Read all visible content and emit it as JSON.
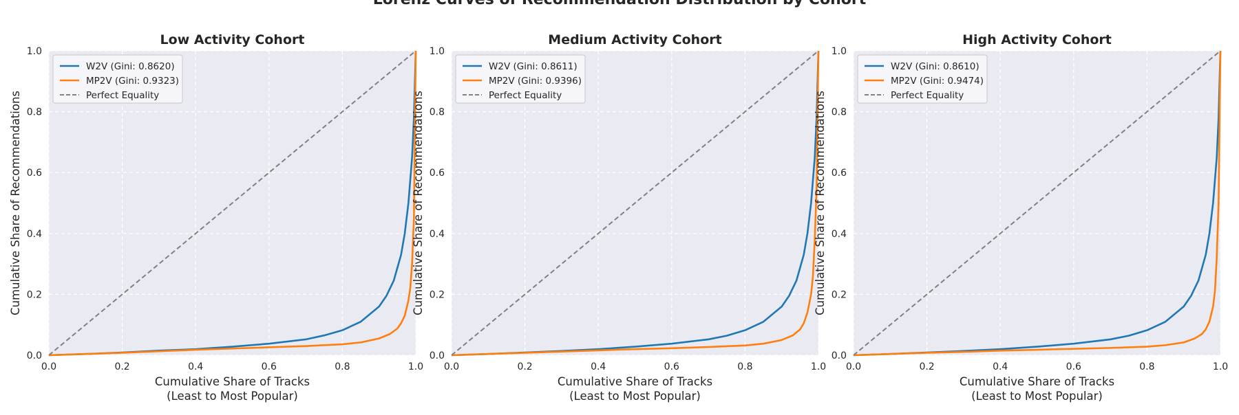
{
  "suptitle": "Lorenz Curves of Recommendation Distribution by Cohort",
  "chart_data": [
    {
      "type": "line",
      "title": "Low Activity Cohort",
      "xlabel": "Cumulative Share of Tracks\n(Least to Most Popular)",
      "ylabel": "Cumulative Share of Recommendations",
      "xlim": [
        0,
        1
      ],
      "ylim": [
        0,
        1
      ],
      "xticks": [
        "0.0",
        "0.2",
        "0.4",
        "0.6",
        "0.8",
        "1.0"
      ],
      "yticks": [
        "0.0",
        "0.2",
        "0.4",
        "0.6",
        "0.8",
        "1.0"
      ],
      "grid": true,
      "legend_position": "top-left",
      "series": [
        {
          "name": "W2V (Gini: 0.8620)",
          "color": "#1f77b4",
          "style": "solid",
          "x": [
            0,
            0.1,
            0.2,
            0.3,
            0.4,
            0.5,
            0.6,
            0.7,
            0.75,
            0.8,
            0.85,
            0.9,
            0.92,
            0.94,
            0.96,
            0.97,
            0.98,
            0.99,
            0.995,
            1.0
          ],
          "y": [
            0,
            0.004,
            0.009,
            0.015,
            0.02,
            0.028,
            0.038,
            0.052,
            0.065,
            0.082,
            0.11,
            0.16,
            0.195,
            0.245,
            0.33,
            0.4,
            0.5,
            0.65,
            0.78,
            1.0
          ]
        },
        {
          "name": "MP2V (Gini: 0.9323)",
          "color": "#ff7f0e",
          "style": "solid",
          "x": [
            0,
            0.1,
            0.2,
            0.3,
            0.4,
            0.5,
            0.6,
            0.7,
            0.8,
            0.85,
            0.9,
            0.93,
            0.95,
            0.96,
            0.97,
            0.98,
            0.985,
            0.99,
            0.995,
            1.0
          ],
          "y": [
            0,
            0.004,
            0.008,
            0.013,
            0.018,
            0.022,
            0.026,
            0.03,
            0.036,
            0.042,
            0.055,
            0.07,
            0.088,
            0.105,
            0.13,
            0.18,
            0.22,
            0.3,
            0.45,
            1.0
          ]
        },
        {
          "name": "Perfect Equality",
          "color": "#808080",
          "style": "dashed",
          "x": [
            0,
            1
          ],
          "y": [
            0,
            1
          ]
        }
      ]
    },
    {
      "type": "line",
      "title": "Medium Activity Cohort",
      "xlabel": "Cumulative Share of Tracks\n(Least to Most Popular)",
      "ylabel": "Cumulative Share of Recommendations",
      "xlim": [
        0,
        1
      ],
      "ylim": [
        0,
        1
      ],
      "xticks": [
        "0.0",
        "0.2",
        "0.4",
        "0.6",
        "0.8",
        "1.0"
      ],
      "yticks": [
        "0.0",
        "0.2",
        "0.4",
        "0.6",
        "0.8",
        "1.0"
      ],
      "grid": true,
      "legend_position": "top-left",
      "series": [
        {
          "name": "W2V (Gini: 0.8611)",
          "color": "#1f77b4",
          "style": "solid",
          "x": [
            0,
            0.1,
            0.2,
            0.3,
            0.4,
            0.5,
            0.6,
            0.7,
            0.75,
            0.8,
            0.85,
            0.9,
            0.92,
            0.94,
            0.96,
            0.97,
            0.98,
            0.99,
            0.995,
            1.0
          ],
          "y": [
            0,
            0.004,
            0.009,
            0.014,
            0.02,
            0.028,
            0.038,
            0.052,
            0.064,
            0.082,
            0.11,
            0.16,
            0.195,
            0.245,
            0.33,
            0.4,
            0.5,
            0.65,
            0.78,
            1.0
          ]
        },
        {
          "name": "MP2V (Gini: 0.9396)",
          "color": "#ff7f0e",
          "style": "solid",
          "x": [
            0,
            0.1,
            0.2,
            0.3,
            0.4,
            0.5,
            0.6,
            0.7,
            0.8,
            0.85,
            0.9,
            0.93,
            0.95,
            0.96,
            0.97,
            0.98,
            0.985,
            0.99,
            0.995,
            1.0
          ],
          "y": [
            0,
            0.004,
            0.008,
            0.012,
            0.016,
            0.02,
            0.023,
            0.027,
            0.032,
            0.038,
            0.05,
            0.065,
            0.085,
            0.105,
            0.14,
            0.2,
            0.26,
            0.38,
            0.55,
            1.0
          ]
        },
        {
          "name": "Perfect Equality",
          "color": "#808080",
          "style": "dashed",
          "x": [
            0,
            1
          ],
          "y": [
            0,
            1
          ]
        }
      ]
    },
    {
      "type": "line",
      "title": "High Activity Cohort",
      "xlabel": "Cumulative Share of Tracks\n(Least to Most Popular)",
      "ylabel": "Cumulative Share of Recommendations",
      "xlim": [
        0,
        1
      ],
      "ylim": [
        0,
        1
      ],
      "xticks": [
        "0.0",
        "0.2",
        "0.4",
        "0.6",
        "0.8",
        "1.0"
      ],
      "yticks": [
        "0.0",
        "0.2",
        "0.4",
        "0.6",
        "0.8",
        "1.0"
      ],
      "grid": true,
      "legend_position": "top-left",
      "series": [
        {
          "name": "W2V (Gini: 0.8610)",
          "color": "#1f77b4",
          "style": "solid",
          "x": [
            0,
            0.1,
            0.2,
            0.3,
            0.4,
            0.5,
            0.6,
            0.7,
            0.75,
            0.8,
            0.85,
            0.9,
            0.92,
            0.94,
            0.96,
            0.97,
            0.98,
            0.99,
            0.995,
            1.0
          ],
          "y": [
            0,
            0.004,
            0.009,
            0.014,
            0.02,
            0.028,
            0.038,
            0.052,
            0.064,
            0.082,
            0.11,
            0.16,
            0.195,
            0.245,
            0.33,
            0.4,
            0.5,
            0.65,
            0.78,
            1.0
          ]
        },
        {
          "name": "MP2V (Gini: 0.9474)",
          "color": "#ff7f0e",
          "style": "solid",
          "x": [
            0,
            0.1,
            0.2,
            0.3,
            0.4,
            0.5,
            0.6,
            0.7,
            0.8,
            0.85,
            0.9,
            0.93,
            0.95,
            0.96,
            0.97,
            0.98,
            0.985,
            0.99,
            0.995,
            1.0
          ],
          "y": [
            0,
            0.004,
            0.008,
            0.011,
            0.015,
            0.018,
            0.021,
            0.024,
            0.028,
            0.033,
            0.042,
            0.055,
            0.07,
            0.085,
            0.11,
            0.16,
            0.21,
            0.32,
            0.5,
            1.0
          ]
        },
        {
          "name": "Perfect Equality",
          "color": "#808080",
          "style": "dashed",
          "x": [
            0,
            1
          ],
          "y": [
            0,
            1
          ]
        }
      ]
    }
  ]
}
